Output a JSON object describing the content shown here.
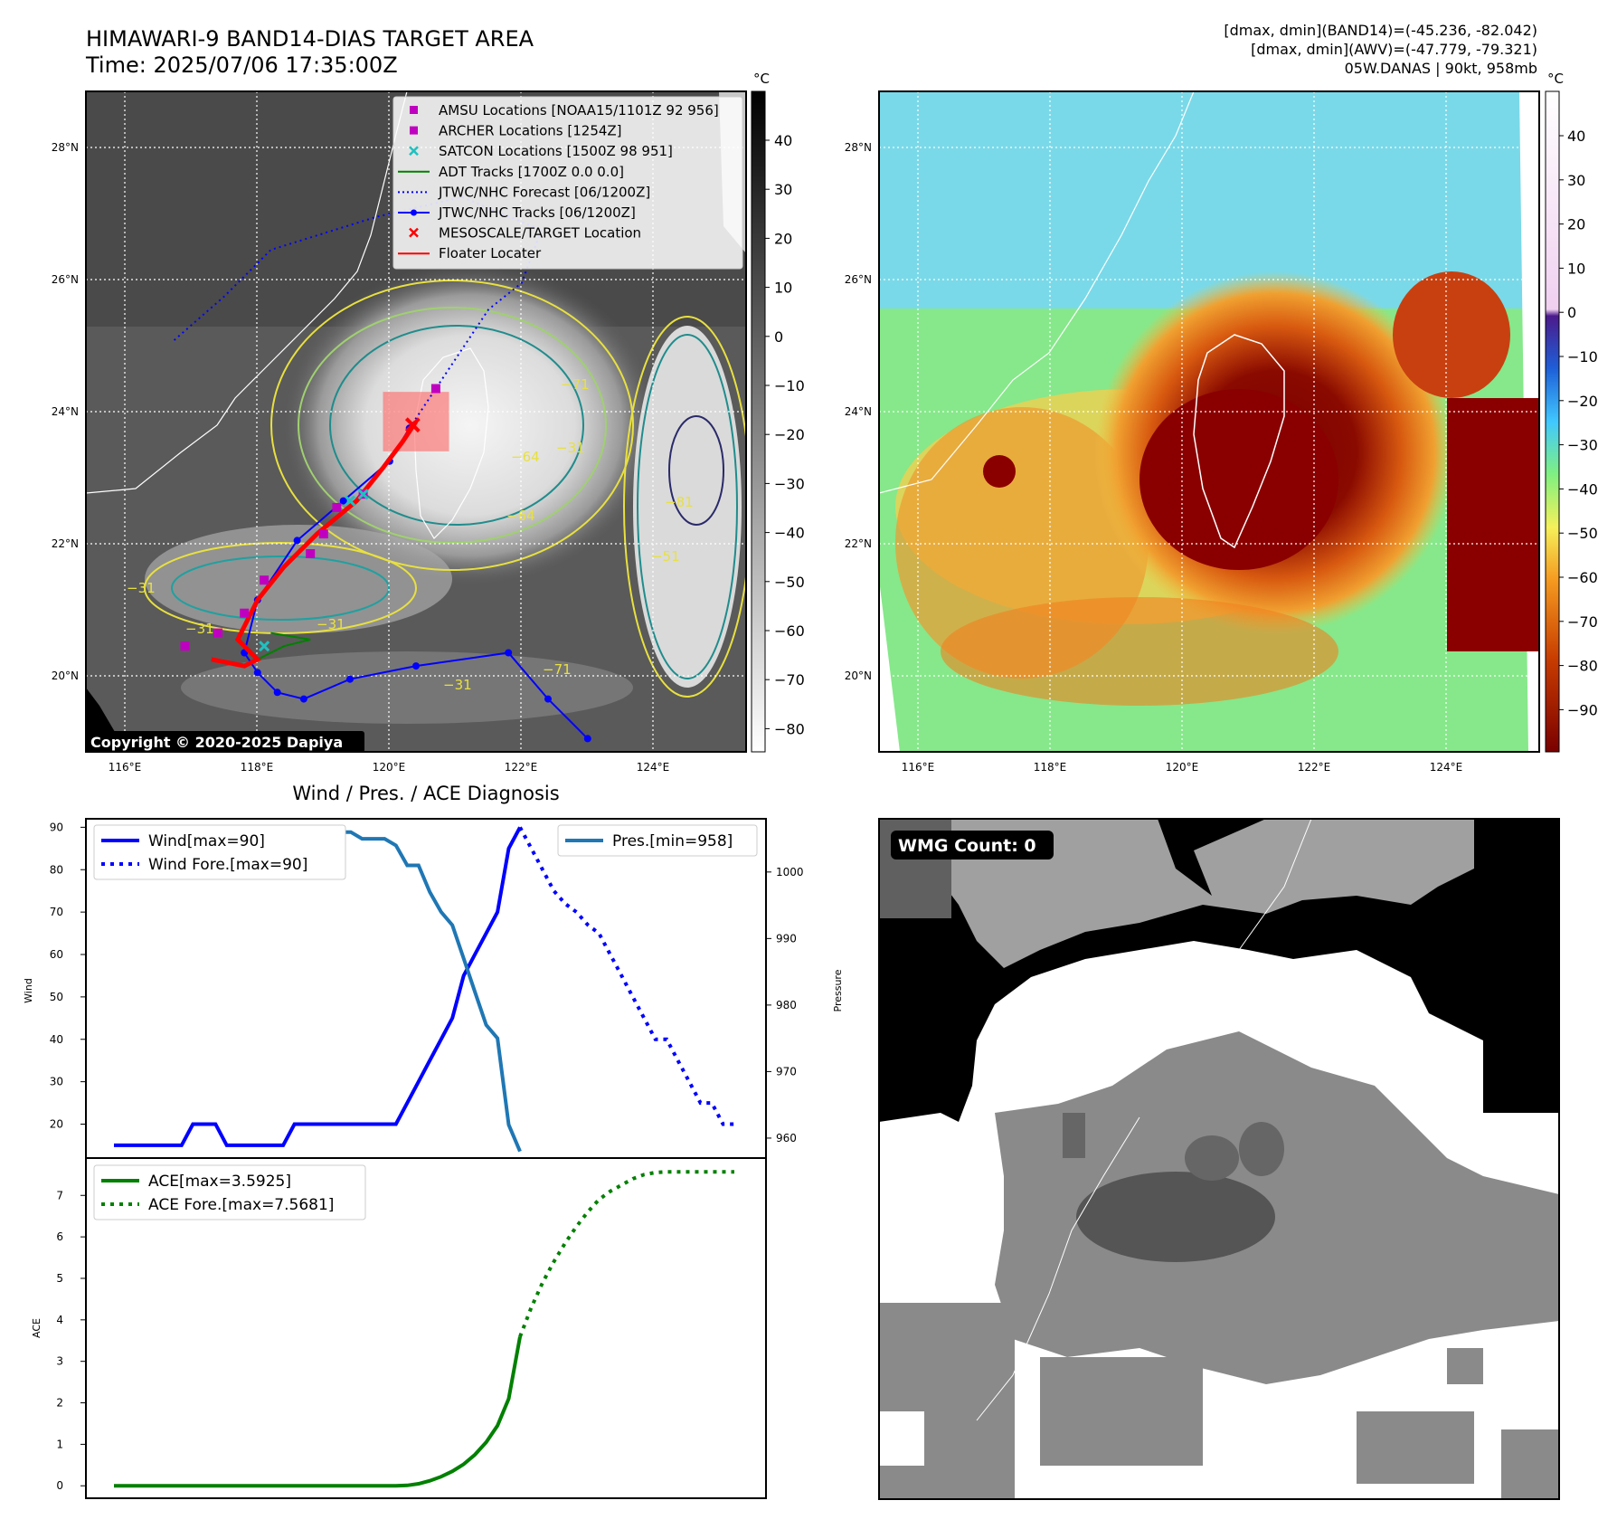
{
  "header": {
    "title_line1": "HIMAWARI-9 BAND14-DIAS TARGET AREA",
    "title_line2": "Time: 2025/07/06 17:35:00Z",
    "info_line1": "[dmax, dmin](BAND14)=(-45.236, -82.042)",
    "info_line2": "[dmax, dmin](AWV)=(-47.779, -79.321)",
    "info_line3": "05W.DANAS | 90kt, 958mb"
  },
  "map_axes": {
    "lon_labels": [
      "116°E",
      "118°E",
      "120°E",
      "122°E",
      "124°E"
    ],
    "lat_labels": [
      "28°N",
      "26°N",
      "24°N",
      "22°N",
      "20°N"
    ],
    "lon_range": [
      115.4,
      125.4
    ],
    "lat_range": [
      18.9,
      28.9
    ]
  },
  "ir_panel": {
    "legend": [
      {
        "label": "AMSU Locations [NOAA15/1101Z 92 956]",
        "symbol": "square",
        "color": "#c000c0"
      },
      {
        "label": "ARCHER Locations [1254Z]",
        "symbol": "square",
        "color": "#c000c0"
      },
      {
        "label": "SATCON Locations [1500Z 98 951]",
        "symbol": "x",
        "color": "#20c0c0"
      },
      {
        "label": "ADT Tracks [1700Z 0.0 0.0]",
        "symbol": "line",
        "color": "#008000"
      },
      {
        "label": "JTWC/NHC Forecast [06/1200Z]",
        "symbol": "dotted",
        "color": "#0000ff"
      },
      {
        "label": "JTWC/NHC Tracks [06/1200Z]",
        "symbol": "line-dot",
        "color": "#0000ff"
      },
      {
        "label": "MESOSCALE/TARGET Location",
        "symbol": "x",
        "color": "#ff0000"
      },
      {
        "label": "Floater Locater",
        "symbol": "line",
        "color": "#ff0000"
      }
    ],
    "copyright": "Copyright © 2020-2025 Dapiya",
    "colorbar_unit": "°C",
    "colorbar_ticks": [
      "40",
      "30",
      "20",
      "10",
      "0",
      "−10",
      "−20",
      "−30",
      "−40",
      "−50",
      "−60",
      "−70",
      "−80"
    ],
    "contour_labels": [
      "−31",
      "−31",
      "−31",
      "−31",
      "−71",
      "−64",
      "−64",
      "−31",
      "−71",
      "−81",
      "−51"
    ],
    "jtwc_track": [
      [
        123.0,
        19.1
      ],
      [
        122.4,
        19.7
      ],
      [
        121.8,
        20.4
      ],
      [
        120.4,
        20.2
      ],
      [
        119.4,
        20.0
      ],
      [
        118.7,
        19.7
      ],
      [
        118.3,
        19.8
      ],
      [
        118.0,
        20.1
      ],
      [
        117.8,
        20.4
      ],
      [
        118.0,
        21.2
      ],
      [
        118.6,
        22.1
      ],
      [
        119.3,
        22.7
      ],
      [
        120.0,
        23.3
      ],
      [
        120.3,
        23.8
      ]
    ],
    "jtwc_forecast": [
      [
        120.3,
        23.8
      ],
      [
        120.9,
        24.7
      ],
      [
        121.5,
        25.6
      ],
      [
        122.0,
        26.0
      ],
      [
        122.3,
        26.8
      ],
      [
        121.1,
        27.3
      ],
      [
        119.8,
        27.0
      ],
      [
        118.2,
        26.5
      ],
      [
        117.5,
        25.8
      ],
      [
        116.7,
        25.1
      ]
    ],
    "floater": [
      [
        117.3,
        20.3
      ],
      [
        117.8,
        20.2
      ],
      [
        118.0,
        20.3
      ],
      [
        117.7,
        20.6
      ],
      [
        118.0,
        21.2
      ],
      [
        118.4,
        21.7
      ],
      [
        118.9,
        22.2
      ],
      [
        119.5,
        22.7
      ],
      [
        119.9,
        23.2
      ],
      [
        120.2,
        23.6
      ],
      [
        120.4,
        23.9
      ]
    ],
    "adt_track": [
      [
        118.0,
        20.3
      ],
      [
        118.4,
        20.5
      ],
      [
        118.8,
        20.6
      ],
      [
        118.2,
        20.7
      ]
    ],
    "amsu_points": [
      [
        116.9,
        20.5
      ],
      [
        117.4,
        20.7
      ],
      [
        117.8,
        21.0
      ],
      [
        118.1,
        21.5
      ],
      [
        118.8,
        21.9
      ],
      [
        119.0,
        22.2
      ],
      [
        119.2,
        22.6
      ],
      [
        119.6,
        22.8
      ],
      [
        120.7,
        24.4
      ]
    ],
    "satcon_points": [
      [
        118.1,
        20.5
      ],
      [
        119.4,
        22.7
      ],
      [
        119.6,
        22.8
      ]
    ],
    "target": [
      120.35,
      23.85
    ],
    "target_box": {
      "lon": [
        119.9,
        120.9
      ],
      "lat": [
        23.45,
        24.35
      ]
    }
  },
  "awv_panel": {
    "colorbar_unit": "°C",
    "colorbar_ticks": [
      "40",
      "30",
      "20",
      "10",
      "0",
      "−10",
      "−20",
      "−30",
      "−40",
      "−50",
      "−60",
      "−70",
      "−80",
      "−90"
    ]
  },
  "diag_panel": {
    "title": "Wind / Pres. / ACE Diagnosis",
    "wind_ylabel": "Wind",
    "pres_ylabel": "Pressure",
    "ace_ylabel": "ACE",
    "wind_ticks": [
      "20",
      "30",
      "40",
      "50",
      "60",
      "70",
      "80",
      "90"
    ],
    "pres_ticks": [
      "960",
      "970",
      "980",
      "990",
      "1000"
    ],
    "ace_ticks": [
      "0",
      "1",
      "2",
      "3",
      "4",
      "5",
      "6",
      "7"
    ],
    "wind_legend": [
      "Wind[max=90]",
      "Wind Fore.[max=90]"
    ],
    "pres_legend": [
      "Pres.[min=958]"
    ],
    "ace_legend": [
      "ACE[max=3.5925]",
      "ACE Fore.[max=7.5681]"
    ],
    "colors": {
      "wind": "#0000ff",
      "pres": "#1f77b4",
      "ace": "#008000"
    }
  },
  "chart_data": [
    {
      "type": "line",
      "title": "Wind / Pres. / ACE Diagnosis",
      "ylabel": "Wind",
      "ylim": [
        12,
        92
      ],
      "x": [
        0,
        1,
        2,
        3,
        4,
        5,
        6,
        7,
        8,
        9,
        10,
        11,
        12,
        13,
        14,
        15,
        16,
        17,
        18,
        19,
        20,
        21,
        22,
        23,
        24,
        25,
        26,
        27,
        28,
        29,
        30,
        31,
        32,
        33,
        34,
        35,
        36,
        37,
        38,
        39,
        40,
        41,
        42,
        43,
        44,
        45,
        46,
        47,
        48,
        49,
        50,
        51,
        52,
        53,
        54,
        55
      ],
      "series": [
        {
          "name": "Wind[max=90]",
          "style": "solid",
          "values": [
            15,
            15,
            15,
            15,
            15,
            15,
            15,
            20,
            20,
            20,
            15,
            15,
            15,
            15,
            15,
            15,
            20,
            20,
            20,
            20,
            20,
            20,
            20,
            20,
            20,
            20,
            25,
            30,
            35,
            40,
            45,
            55,
            60,
            65,
            70,
            85,
            90,
            null,
            null,
            null,
            null,
            null,
            null,
            null,
            null,
            null,
            null,
            null,
            null,
            null,
            null,
            null,
            null,
            null,
            null,
            null
          ]
        },
        {
          "name": "Wind Fore.[max=90]",
          "style": "dotted",
          "values": [
            null,
            null,
            null,
            null,
            null,
            null,
            null,
            null,
            null,
            null,
            null,
            null,
            null,
            null,
            null,
            null,
            null,
            null,
            null,
            null,
            null,
            null,
            null,
            null,
            null,
            null,
            null,
            null,
            null,
            null,
            null,
            null,
            null,
            null,
            null,
            null,
            90,
            85,
            80,
            75,
            72,
            70,
            67,
            65,
            60,
            55,
            50,
            45,
            40,
            40,
            35,
            30,
            25,
            25,
            20,
            20
          ]
        }
      ]
    },
    {
      "type": "line",
      "ylabel": "Pressure",
      "ylim": [
        957,
        1008
      ],
      "x": [
        0,
        1,
        2,
        3,
        4,
        5,
        6,
        7,
        8,
        9,
        10,
        11,
        12,
        13,
        14,
        15,
        16,
        17,
        18,
        19,
        20,
        21,
        22,
        23,
        24,
        25,
        26,
        27,
        28,
        29,
        30,
        31,
        32,
        33,
        34,
        35,
        36
      ],
      "series": [
        {
          "name": "Pres.[min=958]",
          "style": "solid",
          "values": [
            1006,
            1006,
            1006,
            1006,
            1006,
            1005,
            1005,
            1005,
            1005,
            1005,
            1005,
            1005,
            1006,
            1006,
            1006,
            1006,
            1006,
            1005,
            1006,
            1006,
            1006,
            1006,
            1005,
            1005,
            1005,
            1004,
            1001,
            1001,
            997,
            994,
            992,
            987,
            982,
            977,
            975,
            962,
            958
          ]
        }
      ]
    },
    {
      "type": "line",
      "ylabel": "ACE",
      "ylim": [
        -0.3,
        7.9
      ],
      "x": [
        0,
        1,
        2,
        3,
        4,
        5,
        6,
        7,
        8,
        9,
        10,
        11,
        12,
        13,
        14,
        15,
        16,
        17,
        18,
        19,
        20,
        21,
        22,
        23,
        24,
        25,
        26,
        27,
        28,
        29,
        30,
        31,
        32,
        33,
        34,
        35,
        36,
        37,
        38,
        39,
        40,
        41,
        42,
        43,
        44,
        45,
        46,
        47,
        48,
        49,
        50,
        51,
        52,
        53,
        54,
        55
      ],
      "series": [
        {
          "name": "ACE[max=3.5925]",
          "style": "solid",
          "values": [
            0,
            0,
            0,
            0,
            0,
            0,
            0,
            0,
            0,
            0,
            0,
            0,
            0,
            0,
            0,
            0,
            0,
            0,
            0,
            0,
            0,
            0,
            0,
            0,
            0,
            0,
            0.01,
            0.05,
            0.12,
            0.22,
            0.35,
            0.52,
            0.75,
            1.05,
            1.45,
            2.1,
            3.5925,
            null,
            null,
            null,
            null,
            null,
            null,
            null,
            null,
            null,
            null,
            null,
            null,
            null,
            null,
            null,
            null,
            null,
            null,
            null
          ]
        },
        {
          "name": "ACE Fore.[max=7.5681]",
          "style": "dotted",
          "values": [
            null,
            null,
            null,
            null,
            null,
            null,
            null,
            null,
            null,
            null,
            null,
            null,
            null,
            null,
            null,
            null,
            null,
            null,
            null,
            null,
            null,
            null,
            null,
            null,
            null,
            null,
            null,
            null,
            null,
            null,
            null,
            null,
            null,
            null,
            null,
            null,
            3.5925,
            4.3,
            4.9,
            5.4,
            5.85,
            6.25,
            6.6,
            6.9,
            7.1,
            7.25,
            7.4,
            7.5,
            7.55,
            7.5681,
            7.5681,
            7.5681,
            7.5681,
            7.5681,
            7.5681,
            7.5681
          ]
        }
      ]
    }
  ],
  "wmg_panel": {
    "label": "WMG Count: 0"
  }
}
